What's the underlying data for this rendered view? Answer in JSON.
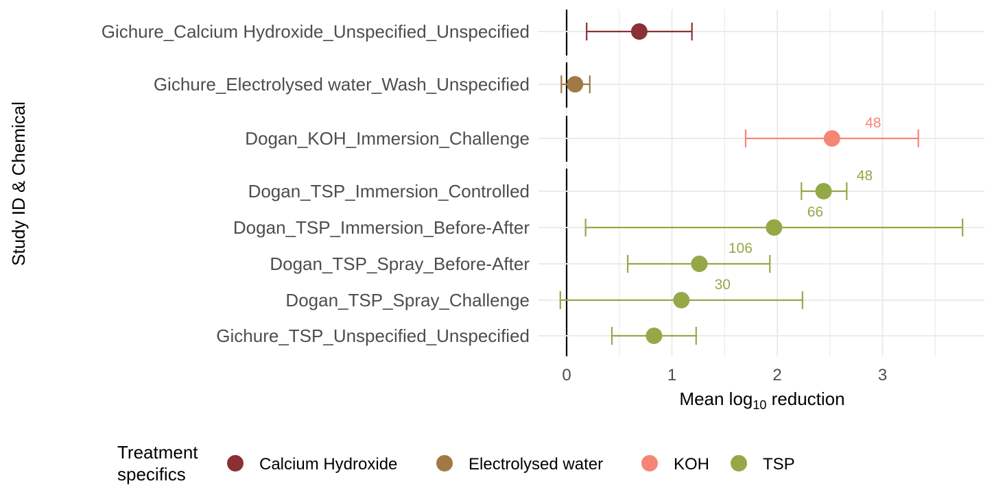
{
  "chart_data": {
    "type": "forest",
    "ylabel": "Study ID & Chemical",
    "xlabel": {
      "main": "Mean log",
      "sub": "10",
      "rest": " reduction"
    },
    "xlim": [
      -0.28,
      3.95
    ],
    "x_ticks": [
      0,
      1,
      2,
      3
    ],
    "grid": true,
    "legend": {
      "title_lines": [
        "Treatment",
        "specifics"
      ],
      "placement": "bottom",
      "items": [
        {
          "label": "Calcium Hydroxide",
          "color": "#8B3034"
        },
        {
          "label": "Electrolysed water",
          "color": "#A07A42"
        },
        {
          "label": "KOH",
          "color": "#F58575"
        },
        {
          "label": "TSP",
          "color": "#94A848"
        }
      ]
    },
    "groups": [
      {
        "rows": [
          {
            "label": "Gichure_Calcium Hydroxide_Unspecified_Unspecified",
            "mean": 0.69,
            "lower": 0.19,
            "upper": 1.19,
            "treatment": "Calcium Hydroxide",
            "n": ""
          }
        ]
      },
      {
        "rows": [
          {
            "label": "Gichure_Electrolysed water_Wash_Unspecified",
            "mean": 0.08,
            "lower": -0.05,
            "upper": 0.22,
            "treatment": "Electrolysed water",
            "n": ""
          }
        ]
      },
      {
        "rows": [
          {
            "label": "Dogan_KOH_Immersion_Challenge",
            "mean": 2.52,
            "lower": 1.7,
            "upper": 3.34,
            "treatment": "KOH",
            "n": "48"
          }
        ]
      },
      {
        "rows": [
          {
            "label": "Dogan_TSP_Immersion_Controlled",
            "mean": 2.44,
            "lower": 2.23,
            "upper": 2.66,
            "treatment": "TSP",
            "n": "48"
          },
          {
            "label": "Dogan_TSP_Immersion_Before-After",
            "mean": 1.97,
            "lower": 0.18,
            "upper": 3.76,
            "treatment": "TSP",
            "n": "66"
          },
          {
            "label": "Dogan_TSP_Spray_Before-After",
            "mean": 1.26,
            "lower": 0.58,
            "upper": 1.93,
            "treatment": "TSP",
            "n": "106"
          },
          {
            "label": "Dogan_TSP_Spray_Challenge",
            "mean": 1.09,
            "lower": -0.06,
            "upper": 2.24,
            "treatment": "TSP",
            "n": "30"
          },
          {
            "label": "Gichure_TSP_Unspecified_Unspecified",
            "mean": 0.83,
            "lower": 0.43,
            "upper": 1.23,
            "treatment": "TSP",
            "n": ""
          }
        ]
      }
    ]
  }
}
